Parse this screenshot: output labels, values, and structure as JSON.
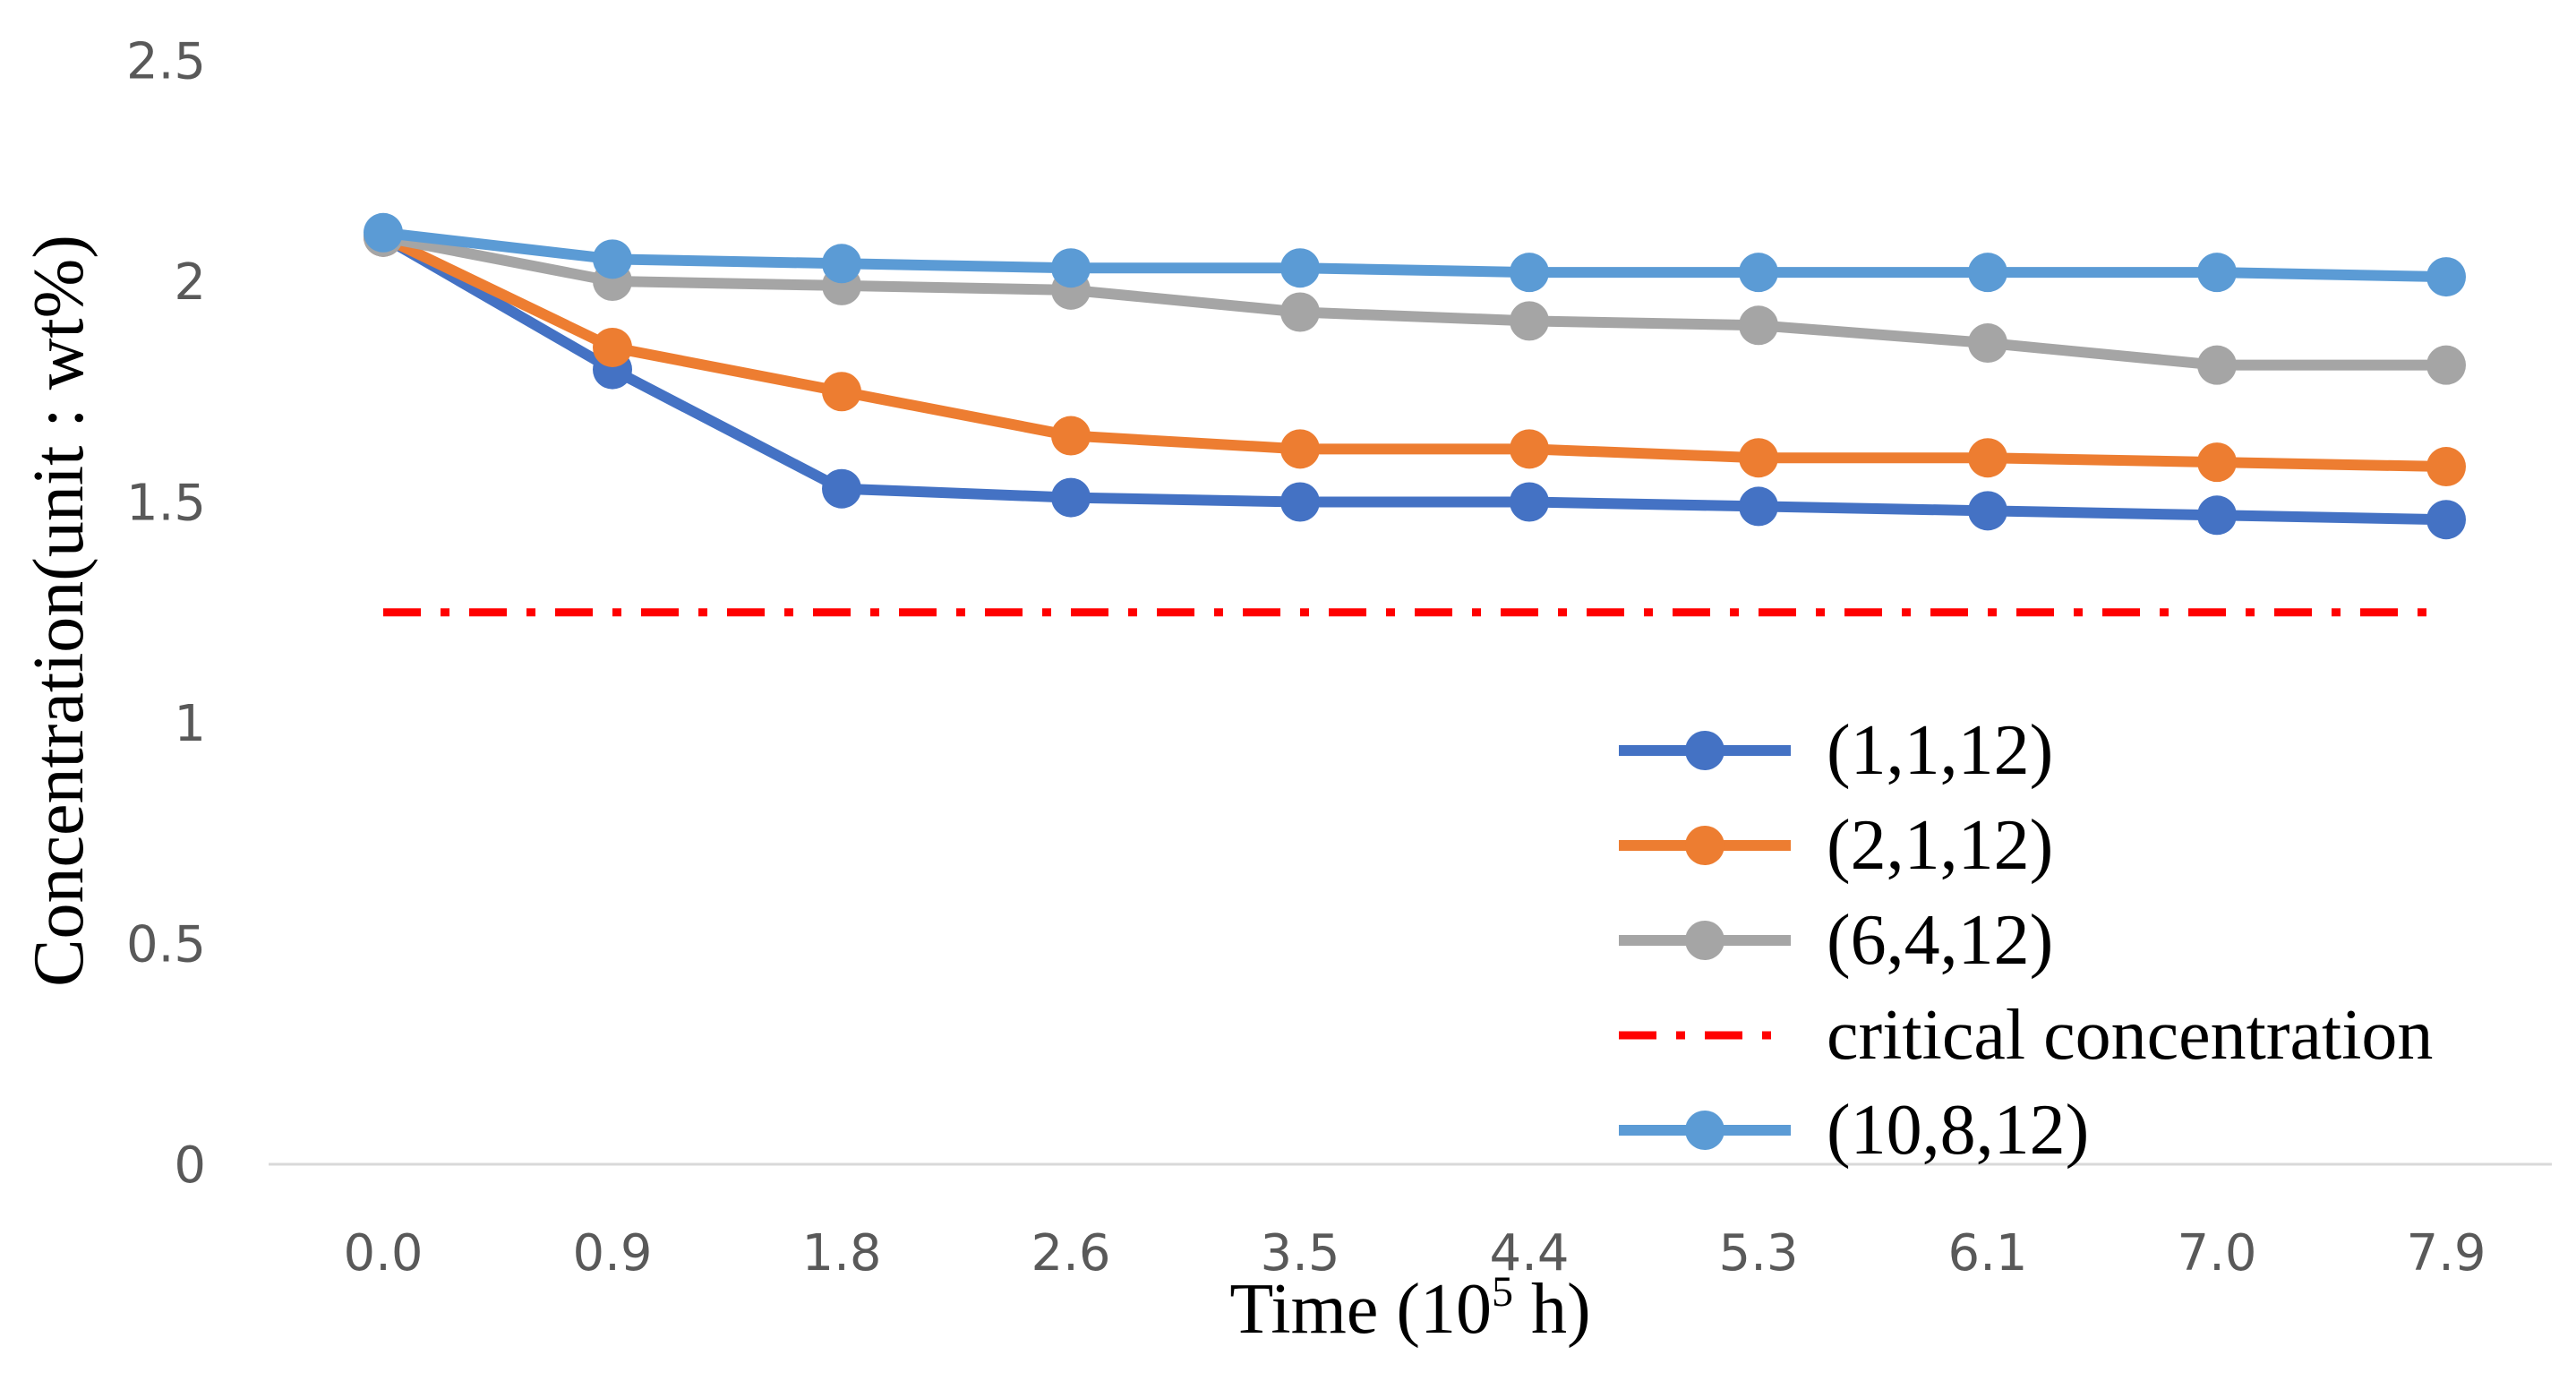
{
  "chart_data": {
    "type": "line",
    "title": "",
    "xlabel_main": "Time (10",
    "xlabel_sup": "5",
    "xlabel_tail": " h)",
    "ylabel": "Concentration(unit : wt%)",
    "categories": [
      "0.0",
      "0.9",
      "1.8",
      "2.6",
      "3.5",
      "4.4",
      "5.3",
      "6.1",
      "7.0",
      "7.9"
    ],
    "ylim": [
      0,
      2.5
    ],
    "yticks": [
      {
        "value": 0,
        "label": "0"
      },
      {
        "value": 0.5,
        "label": "0.5"
      },
      {
        "value": 1,
        "label": "1"
      },
      {
        "value": 1.5,
        "label": "1.5"
      },
      {
        "value": 2,
        "label": "2"
      },
      {
        "value": 2.5,
        "label": "2.5"
      }
    ],
    "grid": false,
    "legend_position": "bottom-right",
    "series": [
      {
        "name": "(1,1,12)",
        "color": "#4472C4",
        "style": "line-marker",
        "values": [
          2.1,
          1.8,
          1.53,
          1.51,
          1.5,
          1.5,
          1.49,
          1.48,
          1.47,
          1.46
        ]
      },
      {
        "name": "(2,1,12)",
        "color": "#ED7D31",
        "style": "line-marker",
        "values": [
          2.1,
          1.85,
          1.75,
          1.65,
          1.62,
          1.62,
          1.6,
          1.6,
          1.59,
          1.58
        ]
      },
      {
        "name": "(6,4,12)",
        "color": "#A5A5A5",
        "style": "line-marker",
        "values": [
          2.1,
          2.0,
          1.99,
          1.98,
          1.93,
          1.91,
          1.9,
          1.86,
          1.81,
          1.81
        ]
      },
      {
        "name": "critical concentration",
        "color": "#FF0000",
        "style": "dash-dot",
        "values": [
          1.25,
          1.25,
          1.25,
          1.25,
          1.25,
          1.25,
          1.25,
          1.25,
          1.25,
          1.25
        ]
      },
      {
        "name": "(10,8,12)",
        "color": "#5B9BD5",
        "style": "line-marker",
        "values": [
          2.11,
          2.05,
          2.04,
          2.03,
          2.03,
          2.02,
          2.02,
          2.02,
          2.02,
          2.01
        ]
      }
    ]
  }
}
